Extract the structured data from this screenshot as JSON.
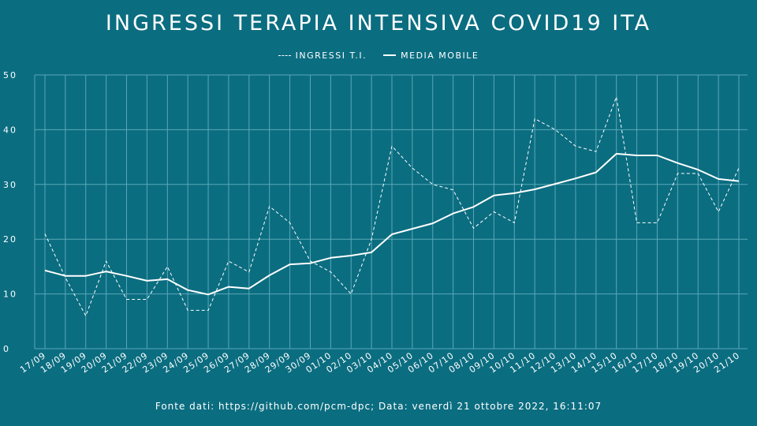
{
  "chart_data": {
    "type": "line",
    "title": "INGRESSI TERAPIA INTENSIVA COVID19 ITA",
    "xlabel": "",
    "ylabel": "",
    "ylim": [
      0,
      50
    ],
    "yticks": [
      0,
      10,
      20,
      30,
      40,
      50
    ],
    "grid": true,
    "legend_position": "top-center",
    "categories": [
      "17/09",
      "18/09",
      "19/09",
      "20/09",
      "21/09",
      "22/09",
      "23/09",
      "24/09",
      "25/09",
      "26/09",
      "27/09",
      "28/09",
      "29/09",
      "30/09",
      "01/10",
      "02/10",
      "03/10",
      "04/10",
      "05/10",
      "06/10",
      "07/10",
      "08/10",
      "09/10",
      "10/10",
      "11/10",
      "12/10",
      "13/10",
      "14/10",
      "15/10",
      "16/10",
      "17/10",
      "18/10",
      "19/10",
      "20/10",
      "21/10"
    ],
    "series": [
      {
        "name": "INGRESSI T.I.",
        "style": "dashed",
        "values": [
          21,
          13,
          6,
          16,
          9,
          9,
          15,
          7,
          7,
          16,
          14,
          26,
          23,
          16,
          14,
          10,
          20,
          37,
          33,
          30,
          29,
          22,
          25,
          23,
          42,
          40,
          37,
          36,
          46,
          23,
          23,
          32,
          32,
          25,
          33
        ]
      },
      {
        "name": "MEDIA MOBILE",
        "style": "solid",
        "values": [
          14.3,
          13.3,
          13.3,
          14.1,
          13.3,
          12.4,
          12.7,
          10.7,
          9.9,
          11.3,
          11.0,
          13.4,
          15.4,
          15.6,
          16.6,
          17.0,
          17.6,
          20.9,
          21.9,
          22.9,
          24.7,
          25.9,
          28.0,
          28.4,
          29.1,
          30.1,
          31.1,
          32.2,
          35.6,
          35.3,
          35.3,
          33.9,
          32.7,
          31.0,
          30.6
        ]
      }
    ],
    "colors": {
      "background": "#0b6d80",
      "foreground": "#ffffff",
      "grid": "#5aa8b8"
    }
  },
  "footer": "Fonte dati: https://github.com/pcm-dpc; Data: venerdì 21 ottobre 2022, 16:11:07"
}
